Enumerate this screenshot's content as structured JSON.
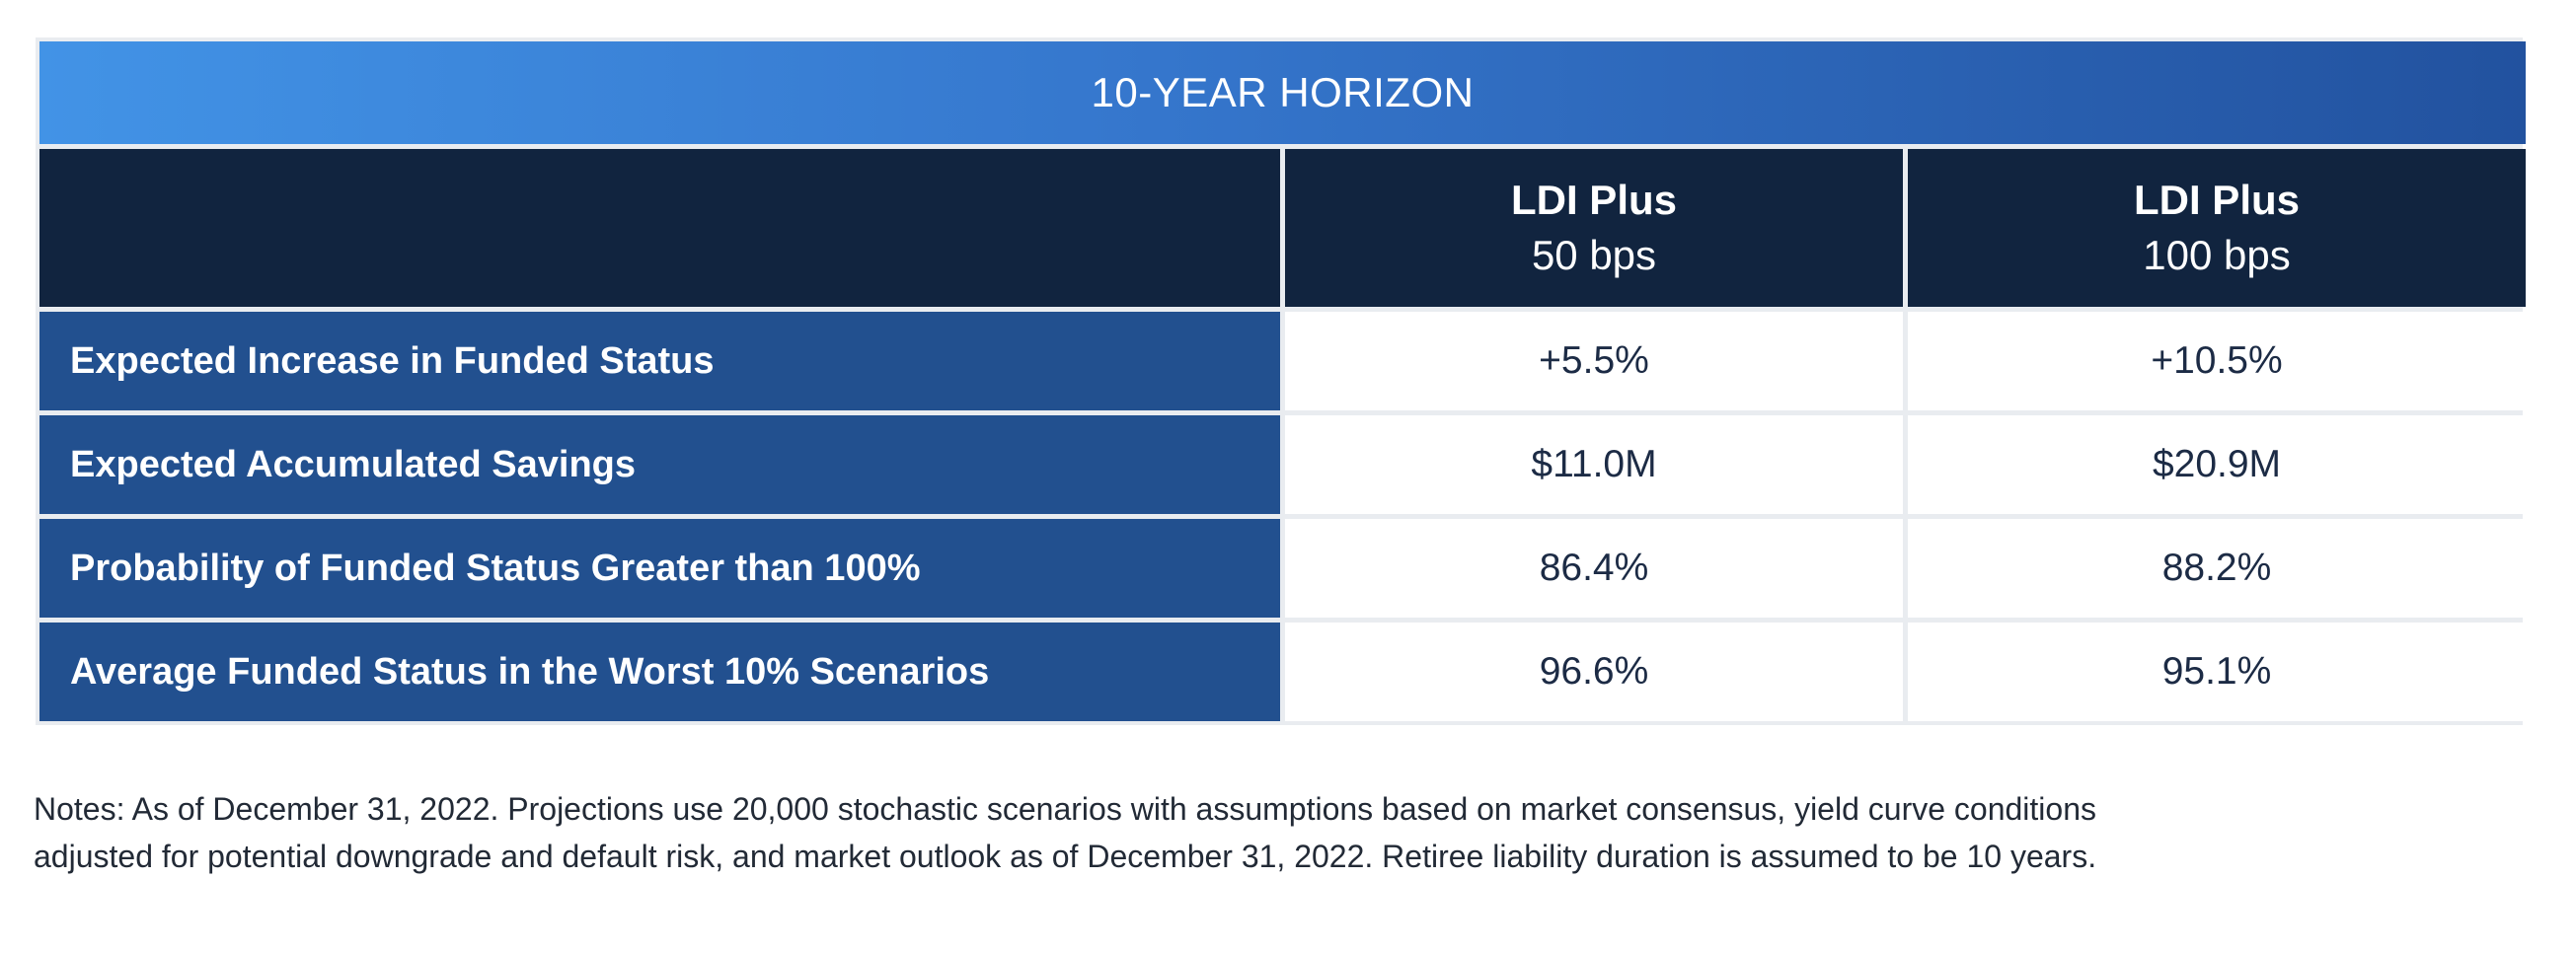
{
  "table": {
    "title": "10-YEAR HORIZON",
    "columns": [
      {
        "name": "LDI Plus",
        "sub": "50 bps"
      },
      {
        "name": "LDI Plus",
        "sub": "100 bps"
      }
    ],
    "rows": [
      {
        "label": "Expected Increase in Funded Status",
        "values": [
          "+5.5%",
          "+10.5%"
        ]
      },
      {
        "label": "Expected Accumulated Savings",
        "values": [
          "$11.0M",
          "$20.9M"
        ]
      },
      {
        "label": "Probability of Funded Status Greater than 100%",
        "values": [
          "86.4%",
          "88.2%"
        ]
      },
      {
        "label": "Average Funded Status in the Worst 10% Scenarios",
        "values": [
          "96.6%",
          "95.1%"
        ]
      }
    ]
  },
  "notes": {
    "line1": "Notes: As of December 31, 2022. Projections use 20,000 stochastic scenarios with assumptions based on market consensus, yield curve conditions",
    "line2": "adjusted for potential downgrade and default risk, and market outlook as of December 31, 2022. Retiree liability duration is assumed to be 10 years."
  },
  "colors": {
    "header_dark": "#11243f",
    "row_label_blue": "#22508f",
    "banner_start": "#4293e6",
    "banner_end": "#22529f"
  }
}
